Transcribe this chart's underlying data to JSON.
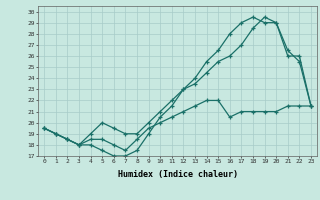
{
  "xlabel": "Humidex (Indice chaleur)",
  "bg_color": "#c8e8e0",
  "line_color": "#1a7068",
  "grid_color": "#a8ccc8",
  "xlim": [
    -0.5,
    23.5
  ],
  "ylim": [
    17,
    30.5
  ],
  "xticks": [
    0,
    1,
    2,
    3,
    4,
    5,
    6,
    7,
    8,
    9,
    10,
    11,
    12,
    13,
    14,
    15,
    16,
    17,
    18,
    19,
    20,
    21,
    22,
    23
  ],
  "yticks": [
    17,
    18,
    19,
    20,
    21,
    22,
    23,
    24,
    25,
    26,
    27,
    28,
    29,
    30
  ],
  "line1_x": [
    0,
    1,
    2,
    3,
    4,
    5,
    6,
    7,
    8,
    9,
    10,
    11,
    12,
    13,
    14,
    15,
    16,
    17,
    18,
    19,
    20,
    21,
    22,
    23
  ],
  "line1_y": [
    19.5,
    19.0,
    18.5,
    18.0,
    18.0,
    17.5,
    17.0,
    17.0,
    17.5,
    19.0,
    20.5,
    21.5,
    23.0,
    23.5,
    24.5,
    25.5,
    26.0,
    27.0,
    28.5,
    29.5,
    29.0,
    26.0,
    26.0,
    21.5
  ],
  "line2_x": [
    0,
    1,
    2,
    3,
    4,
    5,
    6,
    7,
    8,
    9,
    10,
    11,
    12,
    13,
    14,
    15,
    16,
    17,
    18,
    19,
    20,
    21,
    22,
    23
  ],
  "line2_y": [
    19.5,
    19.0,
    18.5,
    18.0,
    19.0,
    20.0,
    19.5,
    19.0,
    19.0,
    20.0,
    21.0,
    22.0,
    23.0,
    24.0,
    25.5,
    26.5,
    28.0,
    29.0,
    29.5,
    29.0,
    29.0,
    26.5,
    25.5,
    21.5
  ],
  "line3_x": [
    0,
    1,
    2,
    3,
    4,
    5,
    6,
    7,
    8,
    9,
    10,
    11,
    12,
    13,
    14,
    15,
    16,
    17,
    18,
    19,
    20,
    21,
    22,
    23
  ],
  "line3_y": [
    19.5,
    19.0,
    18.5,
    18.0,
    18.5,
    18.5,
    18.0,
    17.5,
    18.5,
    19.5,
    20.0,
    20.5,
    21.0,
    21.5,
    22.0,
    22.0,
    20.5,
    21.0,
    21.0,
    21.0,
    21.0,
    21.5,
    21.5,
    21.5
  ]
}
